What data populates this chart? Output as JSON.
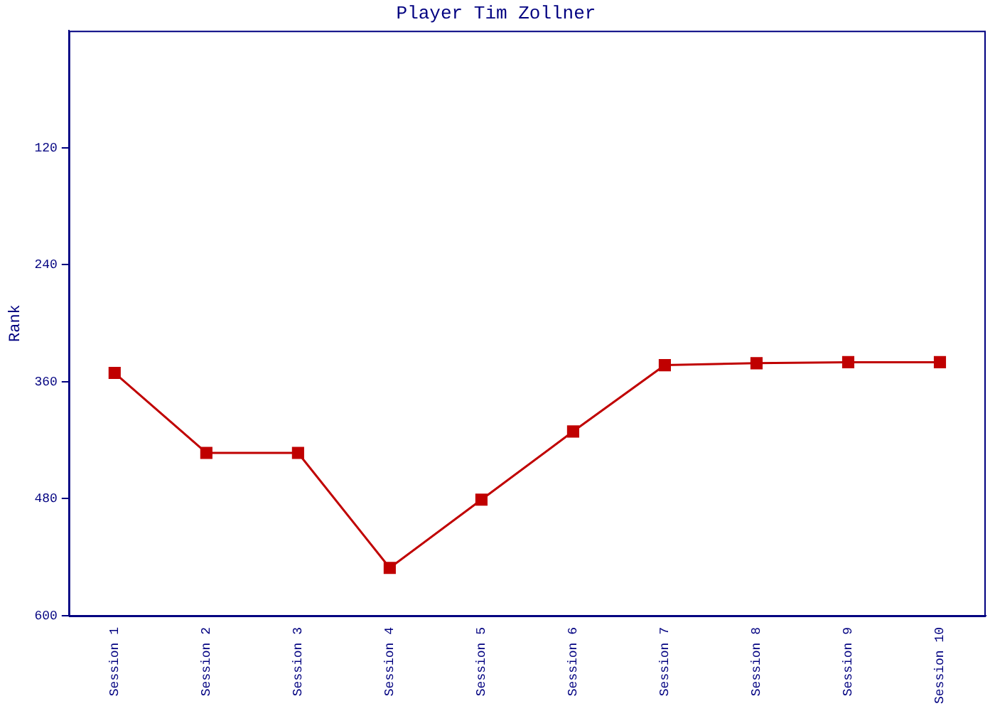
{
  "chart_data": {
    "type": "line",
    "title": "Player Tim Zollner",
    "ylabel": "Rank",
    "categories": [
      "Session 1",
      "Session 2",
      "Session 3",
      "Session 4",
      "Session 5",
      "Session 6",
      "Session 7",
      "Session 8",
      "Session 9",
      "Session 10"
    ],
    "series": [
      {
        "color": "#c00000",
        "values": [
          351,
          433,
          433,
          551,
          481,
          411,
          343,
          341,
          340,
          340
        ]
      }
    ],
    "ylim": [
      600,
      0
    ],
    "yticks": [
      120,
      240,
      360,
      480,
      600
    ],
    "grid": false,
    "legend": false,
    "marker": "square",
    "line_style": "solid"
  }
}
